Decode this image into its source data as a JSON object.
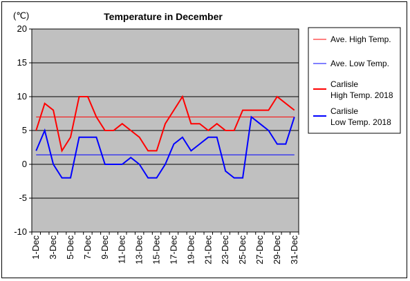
{
  "chart_data": {
    "type": "line",
    "title": "Temperature in December",
    "ylabel": "(℃)",
    "xlabel": "",
    "ylim": [
      -10,
      20
    ],
    "yticks": [
      20,
      15,
      10,
      5,
      0,
      -5,
      -10
    ],
    "categories": [
      "1-Dec",
      "2-Dec",
      "3-Dec",
      "4-Dec",
      "5-Dec",
      "6-Dec",
      "7-Dec",
      "8-Dec",
      "9-Dec",
      "10-Dec",
      "11-Dec",
      "12-Dec",
      "13-Dec",
      "14-Dec",
      "15-Dec",
      "16-Dec",
      "17-Dec",
      "18-Dec",
      "19-Dec",
      "20-Dec",
      "21-Dec",
      "22-Dec",
      "23-Dec",
      "24-Dec",
      "25-Dec",
      "26-Dec",
      "27-Dec",
      "28-Dec",
      "29-Dec",
      "30-Dec",
      "31-Dec"
    ],
    "tick_labels": [
      "1-Dec",
      "3-Dec",
      "5-Dec",
      "7-Dec",
      "9-Dec",
      "11-Dec",
      "13-Dec",
      "15-Dec",
      "17-Dec",
      "19-Dec",
      "21-Dec",
      "23-Dec",
      "25-Dec",
      "27-Dec",
      "29-Dec",
      "31-Dec"
    ],
    "grid": true,
    "legend_position": "right",
    "series": [
      {
        "name": "Ave. High Temp.",
        "color": "#ff0000",
        "values": [
          7,
          7,
          7,
          7,
          7,
          7,
          7,
          7,
          7,
          7,
          7,
          7,
          7,
          7,
          7,
          7,
          7,
          7,
          7,
          7,
          7,
          7,
          7,
          7,
          7,
          7,
          7,
          7,
          7,
          7,
          7
        ]
      },
      {
        "name": "Ave. Low Temp.",
        "color": "#0000ff",
        "values": [
          1.4,
          1.4,
          1.4,
          1.4,
          1.4,
          1.4,
          1.4,
          1.4,
          1.4,
          1.4,
          1.4,
          1.4,
          1.4,
          1.4,
          1.4,
          1.4,
          1.4,
          1.4,
          1.4,
          1.4,
          1.4,
          1.4,
          1.4,
          1.4,
          1.4,
          1.4,
          1.4,
          1.4,
          1.4,
          1.4,
          1.4
        ]
      },
      {
        "name": "Carlisle High Temp. 2018",
        "name_lines": [
          "Carlisle",
          "High Temp. 2018"
        ],
        "color": "#ff0000",
        "values": [
          5,
          9,
          8,
          2,
          4,
          10,
          10,
          7,
          5,
          5,
          6,
          5,
          4,
          2,
          2,
          6,
          8,
          10,
          6,
          6,
          5,
          6,
          5,
          5,
          8,
          8,
          8,
          8,
          10,
          9,
          8
        ]
      },
      {
        "name": "Carlisle Low Temp. 2018",
        "name_lines": [
          "Carlisle",
          "Low Temp. 2018"
        ],
        "color": "#0000ff",
        "values": [
          2,
          5,
          0,
          -2,
          -2,
          4,
          4,
          4,
          0,
          0,
          0,
          1,
          0,
          -2,
          -2,
          0,
          3,
          4,
          2,
          3,
          4,
          4,
          -1,
          -2,
          -2,
          7,
          6,
          5,
          3,
          3,
          7
        ]
      }
    ]
  }
}
